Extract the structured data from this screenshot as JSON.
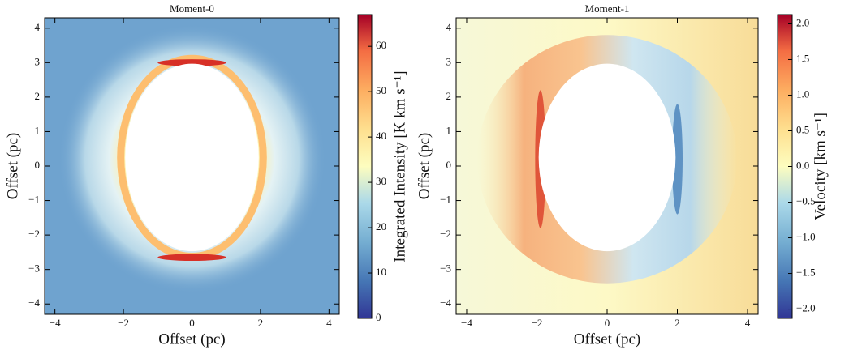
{
  "chart_data": [
    {
      "type": "image",
      "title": "Moment-0",
      "xlabel": "Offset (pc)",
      "ylabel": "Offset (pc)",
      "xlim": [
        -4.3,
        4.3
      ],
      "ylim": [
        -4.3,
        4.3
      ],
      "xticks": [
        {
          "value": -4,
          "label": "−4"
        },
        {
          "value": -2,
          "label": "−2"
        },
        0,
        2,
        4
      ],
      "yticks": [
        {
          "value": -4,
          "label": "−4"
        },
        {
          "value": -3,
          "label": "−3"
        },
        {
          "value": -2,
          "label": "−2"
        },
        {
          "value": -1,
          "label": "−1"
        },
        0,
        1,
        2,
        3,
        4
      ],
      "colorbar": {
        "label": "Integrated Intensity [K km s⁻¹]",
        "lim": [
          0,
          67
        ],
        "ticks": [
          0,
          10,
          20,
          30,
          40,
          50,
          60
        ]
      }
    },
    {
      "type": "image",
      "title": "Moment-1",
      "xlabel": "Offset (pc)",
      "ylabel": "Offset (pc)",
      "xlim": [
        -4.3,
        4.3
      ],
      "ylim": [
        -4.3,
        4.3
      ],
      "xticks": [
        {
          "value": -4,
          "label": "−4"
        },
        {
          "value": -2,
          "label": "−2"
        },
        0,
        2,
        4
      ],
      "yticks": [
        {
          "value": -4,
          "label": "−4"
        },
        {
          "value": -3,
          "label": "−3"
        },
        {
          "value": -2,
          "label": "−2"
        },
        {
          "value": -1,
          "label": "−1"
        },
        0,
        1,
        2,
        3,
        4
      ],
      "colorbar": {
        "label": "Velocity [km s⁻¹]",
        "lim": [
          -2.13,
          2.13
        ],
        "ticks": [
          {
            "value": -2,
            "label": "−2.0"
          },
          {
            "value": -1.5,
            "label": "−1.5"
          },
          {
            "value": -1,
            "label": "−1.0"
          },
          {
            "value": -0.5,
            "label": "−0.5"
          },
          {
            "value": 0,
            "label": "0.0"
          },
          {
            "value": 0.5,
            "label": "0.5"
          },
          {
            "value": 1,
            "label": "1.0"
          },
          {
            "value": 1.5,
            "label": "1.5"
          },
          {
            "value": 2,
            "label": "2.0"
          }
        ]
      }
    }
  ]
}
